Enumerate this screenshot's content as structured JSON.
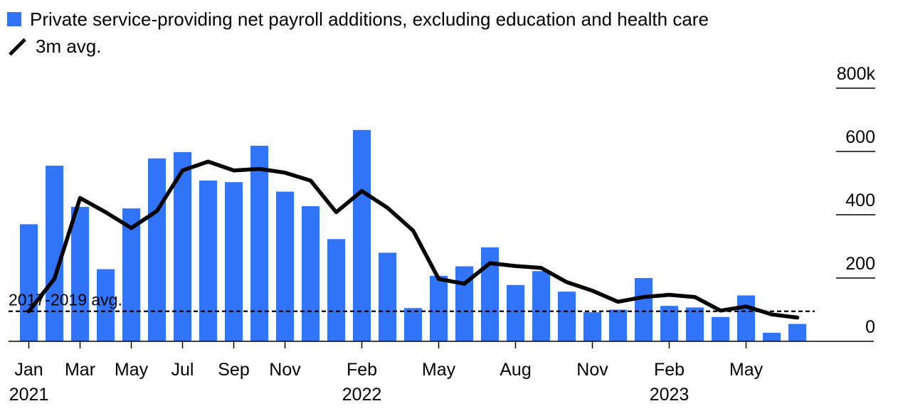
{
  "legend": {
    "bars_label": "Private service-providing net payroll additions, excluding education and health care",
    "line_label": "3m avg."
  },
  "colors": {
    "bar": "#3174f7",
    "line": "#000000",
    "axis": "#000000"
  },
  "chart_data": {
    "type": "bar",
    "x": [
      "2021-01",
      "2021-02",
      "2021-03",
      "2021-04",
      "2021-05",
      "2021-06",
      "2021-07",
      "2021-08",
      "2021-09",
      "2021-10",
      "2021-11",
      "2021-12",
      "2022-01",
      "2022-02",
      "2022-03",
      "2022-04",
      "2022-05",
      "2022-06",
      "2022-07",
      "2022-08",
      "2022-09",
      "2022-10",
      "2022-11",
      "2022-12",
      "2023-01",
      "2023-02",
      "2023-03",
      "2023-04",
      "2023-05",
      "2023-06",
      "2023-07"
    ],
    "series": [
      {
        "name": "Private service-providing net payroll additions, excluding education and health care",
        "type": "bar",
        "values": [
          370,
          555,
          425,
          228,
          420,
          578,
          598,
          508,
          503,
          618,
          473,
          427,
          323,
          668,
          280,
          105,
          207,
          237,
          297,
          178,
          222,
          157,
          92,
          100,
          200,
          112,
          107,
          77,
          145,
          27,
          55
        ]
      },
      {
        "name": "3m avg.",
        "type": "line",
        "values": [
          95,
          198,
          453,
          408,
          358,
          412,
          540,
          568,
          540,
          545,
          533,
          508,
          408,
          475,
          422,
          350,
          197,
          182,
          247,
          238,
          232,
          187,
          160,
          125,
          140,
          147,
          140,
          97,
          110,
          85,
          75
        ]
      }
    ],
    "reference_line": {
      "label": "2017-2019 avg.",
      "value": 95
    },
    "ylim": [
      0,
      800
    ],
    "yticks": [
      0,
      200,
      400,
      600,
      "800k"
    ],
    "xticks": [
      {
        "x": "2021-01",
        "label": "Jan",
        "year": "2021"
      },
      {
        "x": "2021-03",
        "label": "Mar"
      },
      {
        "x": "2021-05",
        "label": "May"
      },
      {
        "x": "2021-07",
        "label": "Jul"
      },
      {
        "x": "2021-09",
        "label": "Sep"
      },
      {
        "x": "2021-11",
        "label": "Nov"
      },
      {
        "x": "2022-02",
        "label": "Feb",
        "year": "2022"
      },
      {
        "x": "2022-05",
        "label": "May"
      },
      {
        "x": "2022-08",
        "label": "Aug"
      },
      {
        "x": "2022-11",
        "label": "Nov"
      },
      {
        "x": "2023-02",
        "label": "Feb",
        "year": "2023"
      },
      {
        "x": "2023-05",
        "label": "May"
      }
    ],
    "grid": false,
    "legend_position": "top-left"
  }
}
